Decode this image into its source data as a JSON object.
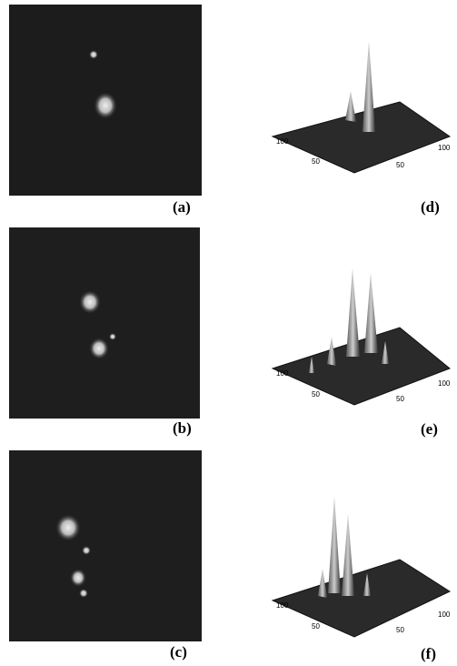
{
  "panels": [
    {
      "label": "(a)"
    },
    {
      "label": "(b)"
    },
    {
      "label": "(c)"
    },
    {
      "label": "(d)",
      "ticks": [
        "100",
        "50",
        "100",
        "50"
      ]
    },
    {
      "label": "(e)",
      "ticks": [
        "100",
        "50",
        "100",
        "50"
      ]
    },
    {
      "label": "(f)",
      "ticks": [
        "100",
        "50",
        "100",
        "50"
      ]
    }
  ]
}
